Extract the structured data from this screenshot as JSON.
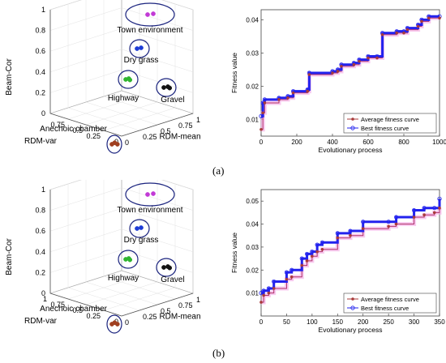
{
  "panels": [
    {
      "label": "(a)",
      "scatter3d": {
        "zlabel": "Beam-Cor",
        "ylabel": "RDM-var",
        "xlabel": "RDM-mean",
        "zticks": [
          "1",
          "0.8",
          "0.6",
          "0.4",
          "0.2",
          "0"
        ],
        "yticks": [
          "0.75",
          "0.5",
          "0.25",
          "0"
        ],
        "xticks": [
          "0",
          "0.25",
          "0.5",
          "0.75",
          "1"
        ],
        "clusters": [
          {
            "name": "Town environment",
            "color": "#c23ad6"
          },
          {
            "name": "Dry grass",
            "color": "#1e3cd6"
          },
          {
            "name": "Highway",
            "color": "#2fb52f"
          },
          {
            "name": "Gravel",
            "color": "#111111"
          },
          {
            "name": "Anechoic chamber",
            "color": "#a04020"
          }
        ]
      },
      "fitness": {
        "xlabel": "Evolutionary process",
        "ylabel": "Fitness value",
        "xticks": [
          "0",
          "200",
          "400",
          "600",
          "800",
          "1000"
        ],
        "yticks": [
          "0.01",
          "0.02",
          "0.03",
          "0.04"
        ],
        "legend": [
          "Average fitness curve",
          "Best fitness curve"
        ]
      }
    },
    {
      "label": "(b)",
      "scatter3d": {
        "zlabel": "Beam-Cor",
        "ylabel": "RDM-var",
        "xlabel": "RDM-mean",
        "zticks": [
          "1",
          "0.8",
          "0.6",
          "0.4",
          "0.2",
          "0"
        ],
        "yticks": [
          "1",
          "0.75",
          "0.5",
          "0.25",
          "0"
        ],
        "xticks": [
          "0",
          "0.25",
          "0.5",
          "0.75",
          "1"
        ],
        "clusters": [
          {
            "name": "Town environment",
            "color": "#c23ad6"
          },
          {
            "name": "Dry grass",
            "color": "#1e3cd6"
          },
          {
            "name": "Highway",
            "color": "#2fb52f"
          },
          {
            "name": "Gravel",
            "color": "#111111"
          },
          {
            "name": "Anechoic chamber",
            "color": "#a04020"
          }
        ]
      },
      "fitness": {
        "xlabel": "Evolutionary process",
        "ylabel": "Fitness value",
        "xticks": [
          "0",
          "50",
          "100",
          "150",
          "200",
          "250",
          "300",
          "350"
        ],
        "yticks": [
          "0.01",
          "0.02",
          "0.03",
          "0.04",
          "0.05"
        ],
        "legend": [
          "Average fitness curve",
          "Best fitness curve"
        ]
      }
    }
  ],
  "chart_data": [
    {
      "type": "scatter",
      "subtitle": "(a)",
      "xlabel": "RDM-mean",
      "ylabel": "RDM-var",
      "zlabel": "Beam-Cor",
      "series": [
        {
          "name": "Town environment",
          "color": "#c23ad6",
          "x": [
            0.15,
            0.25
          ],
          "y": [
            0.2,
            0.25
          ],
          "z": [
            1.0,
            1.0
          ]
        },
        {
          "name": "Dry grass",
          "color": "#1e3cd6",
          "x": [
            0.25,
            0.3
          ],
          "y": [
            0.3,
            0.35
          ],
          "z": [
            0.75,
            0.72
          ]
        },
        {
          "name": "Highway",
          "color": "#2fb52f",
          "x": [
            0.2,
            0.22,
            0.18
          ],
          "y": [
            0.45,
            0.5,
            0.48
          ],
          "z": [
            0.55,
            0.5,
            0.52
          ]
        },
        {
          "name": "Gravel",
          "color": "#111111",
          "x": [
            0.55,
            0.6,
            0.58
          ],
          "y": [
            0.25,
            0.3,
            0.28
          ],
          "z": [
            0.55,
            0.5,
            0.52
          ]
        },
        {
          "name": "Anechoic chamber",
          "color": "#a04020",
          "x": [
            0.02,
            0.03,
            0.04
          ],
          "y": [
            0.02,
            0.03,
            0.02
          ],
          "z": [
            0.0,
            0.0,
            0.0
          ]
        }
      ]
    },
    {
      "type": "line",
      "subtitle": "(a)",
      "xlabel": "Evolutionary process",
      "ylabel": "Fitness value",
      "xlim": [
        0,
        1000
      ],
      "ylim": [
        0.005,
        0.043
      ],
      "series": [
        {
          "name": "Best fitness curve",
          "x": [
            0,
            10,
            20,
            100,
            150,
            180,
            260,
            270,
            400,
            430,
            450,
            520,
            550,
            600,
            650,
            680,
            760,
            800,
            820,
            880,
            900,
            940,
            1000
          ],
          "y": [
            0.011,
            0.015,
            0.016,
            0.0165,
            0.017,
            0.0185,
            0.019,
            0.024,
            0.0245,
            0.025,
            0.0265,
            0.027,
            0.028,
            0.029,
            0.029,
            0.036,
            0.0365,
            0.0365,
            0.0375,
            0.0385,
            0.04,
            0.041,
            0.041
          ]
        },
        {
          "name": "Average fitness curve",
          "x": [
            0,
            10,
            20,
            100,
            150,
            180,
            260,
            270,
            400,
            430,
            450,
            520,
            550,
            600,
            650,
            680,
            760,
            800,
            820,
            880,
            900,
            940,
            1000
          ],
          "y": [
            0.007,
            0.012,
            0.015,
            0.016,
            0.0165,
            0.018,
            0.0185,
            0.0235,
            0.024,
            0.0245,
            0.026,
            0.0265,
            0.0275,
            0.0285,
            0.0285,
            0.0355,
            0.036,
            0.036,
            0.037,
            0.038,
            0.0395,
            0.0405,
            0.0405
          ]
        }
      ]
    },
    {
      "type": "scatter",
      "subtitle": "(b)",
      "xlabel": "RDM-mean",
      "ylabel": "RDM-var",
      "zlabel": "Beam-Cor",
      "series": [
        {
          "name": "Town environment",
          "color": "#c23ad6",
          "x": [
            0.15,
            0.25
          ],
          "y": [
            0.2,
            0.25
          ],
          "z": [
            1.0,
            1.0
          ]
        },
        {
          "name": "Dry grass",
          "color": "#1e3cd6",
          "x": [
            0.25,
            0.3
          ],
          "y": [
            0.3,
            0.35
          ],
          "z": [
            0.75,
            0.72
          ]
        },
        {
          "name": "Highway",
          "color": "#2fb52f",
          "x": [
            0.2,
            0.22,
            0.18
          ],
          "y": [
            0.45,
            0.5,
            0.48
          ],
          "z": [
            0.55,
            0.5,
            0.52
          ]
        },
        {
          "name": "Gravel",
          "color": "#111111",
          "x": [
            0.55,
            0.6,
            0.58
          ],
          "y": [
            0.25,
            0.3,
            0.28
          ],
          "z": [
            0.55,
            0.5,
            0.52
          ]
        },
        {
          "name": "Anechoic chamber",
          "color": "#a04020",
          "x": [
            0.02,
            0.03,
            0.04
          ],
          "y": [
            0.02,
            0.03,
            0.02
          ],
          "z": [
            0.0,
            0.0,
            0.0
          ]
        }
      ]
    },
    {
      "type": "line",
      "subtitle": "(b)",
      "xlabel": "Evolutionary process",
      "ylabel": "Fitness value",
      "xlim": [
        0,
        350
      ],
      "ylim": [
        0.0,
        0.055
      ],
      "series": [
        {
          "name": "Best fitness curve",
          "x": [
            0,
            5,
            15,
            25,
            50,
            60,
            80,
            90,
            100,
            110,
            120,
            150,
            175,
            200,
            250,
            265,
            300,
            320,
            340,
            350
          ],
          "y": [
            0.01,
            0.011,
            0.012,
            0.015,
            0.019,
            0.02,
            0.025,
            0.027,
            0.028,
            0.031,
            0.032,
            0.036,
            0.037,
            0.041,
            0.041,
            0.043,
            0.046,
            0.047,
            0.047,
            0.051
          ]
        },
        {
          "name": "Average fitness curve",
          "x": [
            0,
            5,
            15,
            25,
            50,
            60,
            80,
            90,
            100,
            110,
            120,
            150,
            175,
            200,
            250,
            265,
            300,
            320,
            340,
            350
          ],
          "y": [
            0.006,
            0.009,
            0.01,
            0.012,
            0.016,
            0.017,
            0.022,
            0.024,
            0.026,
            0.028,
            0.029,
            0.034,
            0.035,
            0.038,
            0.039,
            0.04,
            0.043,
            0.044,
            0.045,
            0.047
          ]
        }
      ]
    }
  ]
}
